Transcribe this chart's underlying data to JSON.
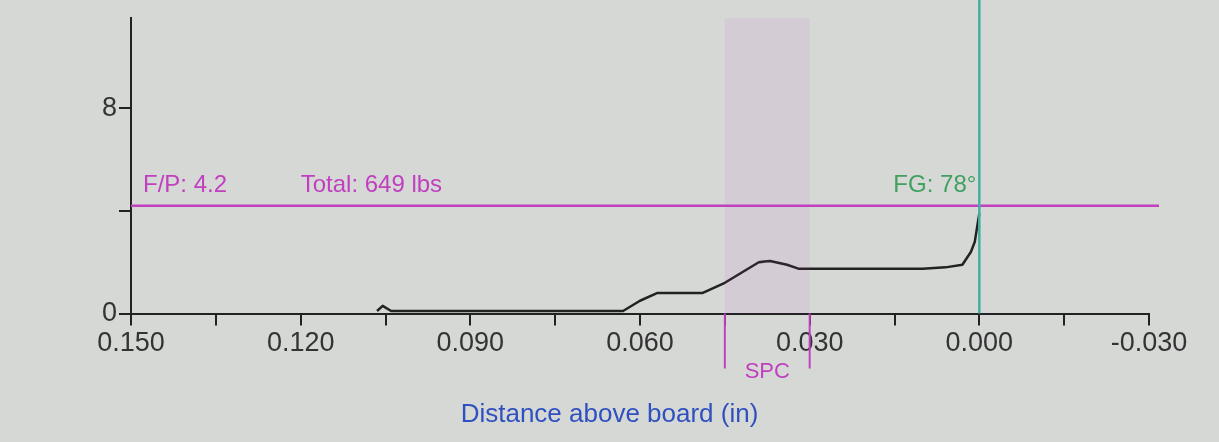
{
  "chart_data": {
    "type": "line",
    "xlabel": "Distance above board (in)",
    "x": [
      0.1065,
      0.1055,
      0.104,
      0.085,
      0.063,
      0.06,
      0.057,
      0.049,
      0.045,
      0.042,
      0.039,
      0.037,
      0.034,
      0.032,
      0.01,
      0.006,
      0.003,
      0.0015,
      0.0008,
      0.0003,
      0.0
    ],
    "series": [
      {
        "color": "#222222",
        "values": [
          0.1,
          0.3,
          0.1,
          0.1,
          0.1,
          0.5,
          0.8,
          0.8,
          1.2,
          1.6,
          2.0,
          2.05,
          1.9,
          1.75,
          1.75,
          1.8,
          1.9,
          2.4,
          2.8,
          3.5,
          3.9
        ]
      }
    ],
    "xlim": [
      0.15,
      -0.03
    ],
    "xticks": [
      {
        "value": 0.15,
        "label": "0.150"
      },
      {
        "value": 0.135,
        "label": null
      },
      {
        "value": 0.12,
        "label": "0.120"
      },
      {
        "value": 0.105,
        "label": null
      },
      {
        "value": 0.09,
        "label": "0.090"
      },
      {
        "value": 0.075,
        "label": null
      },
      {
        "value": 0.06,
        "label": "0.060"
      },
      {
        "value": 0.045,
        "label": null
      },
      {
        "value": 0.03,
        "label": "0.030"
      },
      {
        "value": 0.015,
        "label": null
      },
      {
        "value": 0,
        "label": "0.000"
      },
      {
        "value": -0.015,
        "label": null
      },
      {
        "value": -0.03,
        "label": "-0.030"
      }
    ],
    "ylim": [
      0,
      11.5
    ],
    "yticks": [
      0,
      {
        "value": 4,
        "label": null
      },
      8
    ],
    "ref_lines": [
      {
        "axis": "y",
        "value": 4.2,
        "label": "F/P: 4.2",
        "color": "#c040c0"
      },
      {
        "axis": "x",
        "value": 0,
        "color": "#40b0a0"
      }
    ],
    "bands": [
      {
        "axis": "x",
        "from": 0.045,
        "to": 0.03,
        "label": "SPC",
        "color": "#c040c0"
      }
    ],
    "annotations": [
      {
        "text": "Total: 649 lbs",
        "x": 0.12,
        "y": 4.2
      },
      {
        "text": "FG: 78°",
        "x": 0,
        "y": 4.2
      }
    ],
    "grid": false,
    "legend": false,
    "marker": "none",
    "line_style": "solid"
  }
}
